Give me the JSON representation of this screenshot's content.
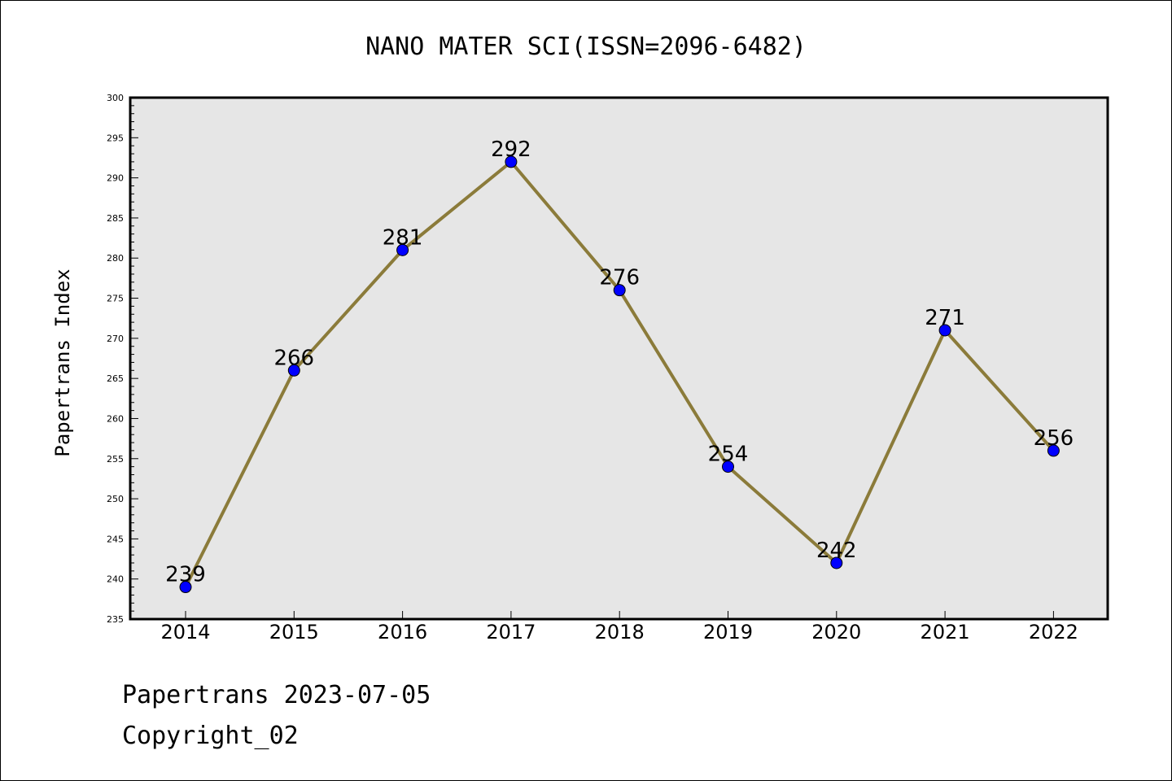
{
  "chart_data": {
    "type": "line",
    "title": "NANO MATER SCI(ISSN=2096-6482)",
    "xlabel": "",
    "ylabel": "Papertrans Index",
    "categories": [
      "2014",
      "2015",
      "2016",
      "2017",
      "2018",
      "2019",
      "2020",
      "2021",
      "2022"
    ],
    "series": [
      {
        "values": [
          239,
          266,
          281,
          292,
          276,
          254,
          242,
          271,
          256
        ]
      }
    ],
    "data_labels": [
      "239",
      "266",
      "281",
      "292",
      "276",
      "254",
      "242",
      "271",
      "256"
    ],
    "ylim": [
      235,
      300
    ],
    "yticks": [
      235,
      240,
      245,
      250,
      255,
      260,
      265,
      270,
      275,
      280,
      285,
      290,
      295,
      300
    ],
    "grid": false,
    "legend": "none",
    "colors": {
      "line": "#8B7B3A",
      "marker": "#0000FF",
      "plot_bg": "#E6E6E6"
    }
  },
  "footer": {
    "line1": "Papertrans 2023-07-05",
    "line2": "Copyright_02"
  }
}
